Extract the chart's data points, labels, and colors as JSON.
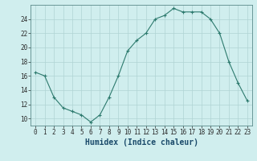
{
  "x": [
    0,
    1,
    2,
    3,
    4,
    5,
    6,
    7,
    8,
    9,
    10,
    11,
    12,
    13,
    14,
    15,
    16,
    17,
    18,
    19,
    20,
    21,
    22,
    23
  ],
  "y": [
    16.5,
    16.0,
    13.0,
    11.5,
    11.0,
    10.5,
    9.5,
    10.5,
    13.0,
    16.0,
    19.5,
    21.0,
    22.0,
    24.0,
    24.5,
    25.5,
    25.0,
    25.0,
    25.0,
    24.0,
    22.0,
    18.0,
    15.0,
    12.5
  ],
  "line_color": "#2d7a6e",
  "marker_color": "#2d7a6e",
  "bg_color": "#d0eeee",
  "grid_color": "#b0d4d4",
  "xlabel": "Humidex (Indice chaleur)",
  "xlim": [
    -0.5,
    23.5
  ],
  "ylim": [
    9.0,
    26.0
  ],
  "yticks": [
    10,
    12,
    14,
    16,
    18,
    20,
    22,
    24
  ],
  "xticks": [
    0,
    1,
    2,
    3,
    4,
    5,
    6,
    7,
    8,
    9,
    10,
    11,
    12,
    13,
    14,
    15,
    16,
    17,
    18,
    19,
    20,
    21,
    22,
    23
  ],
  "tick_label_fontsize": 5.5,
  "xlabel_fontsize": 7.0
}
